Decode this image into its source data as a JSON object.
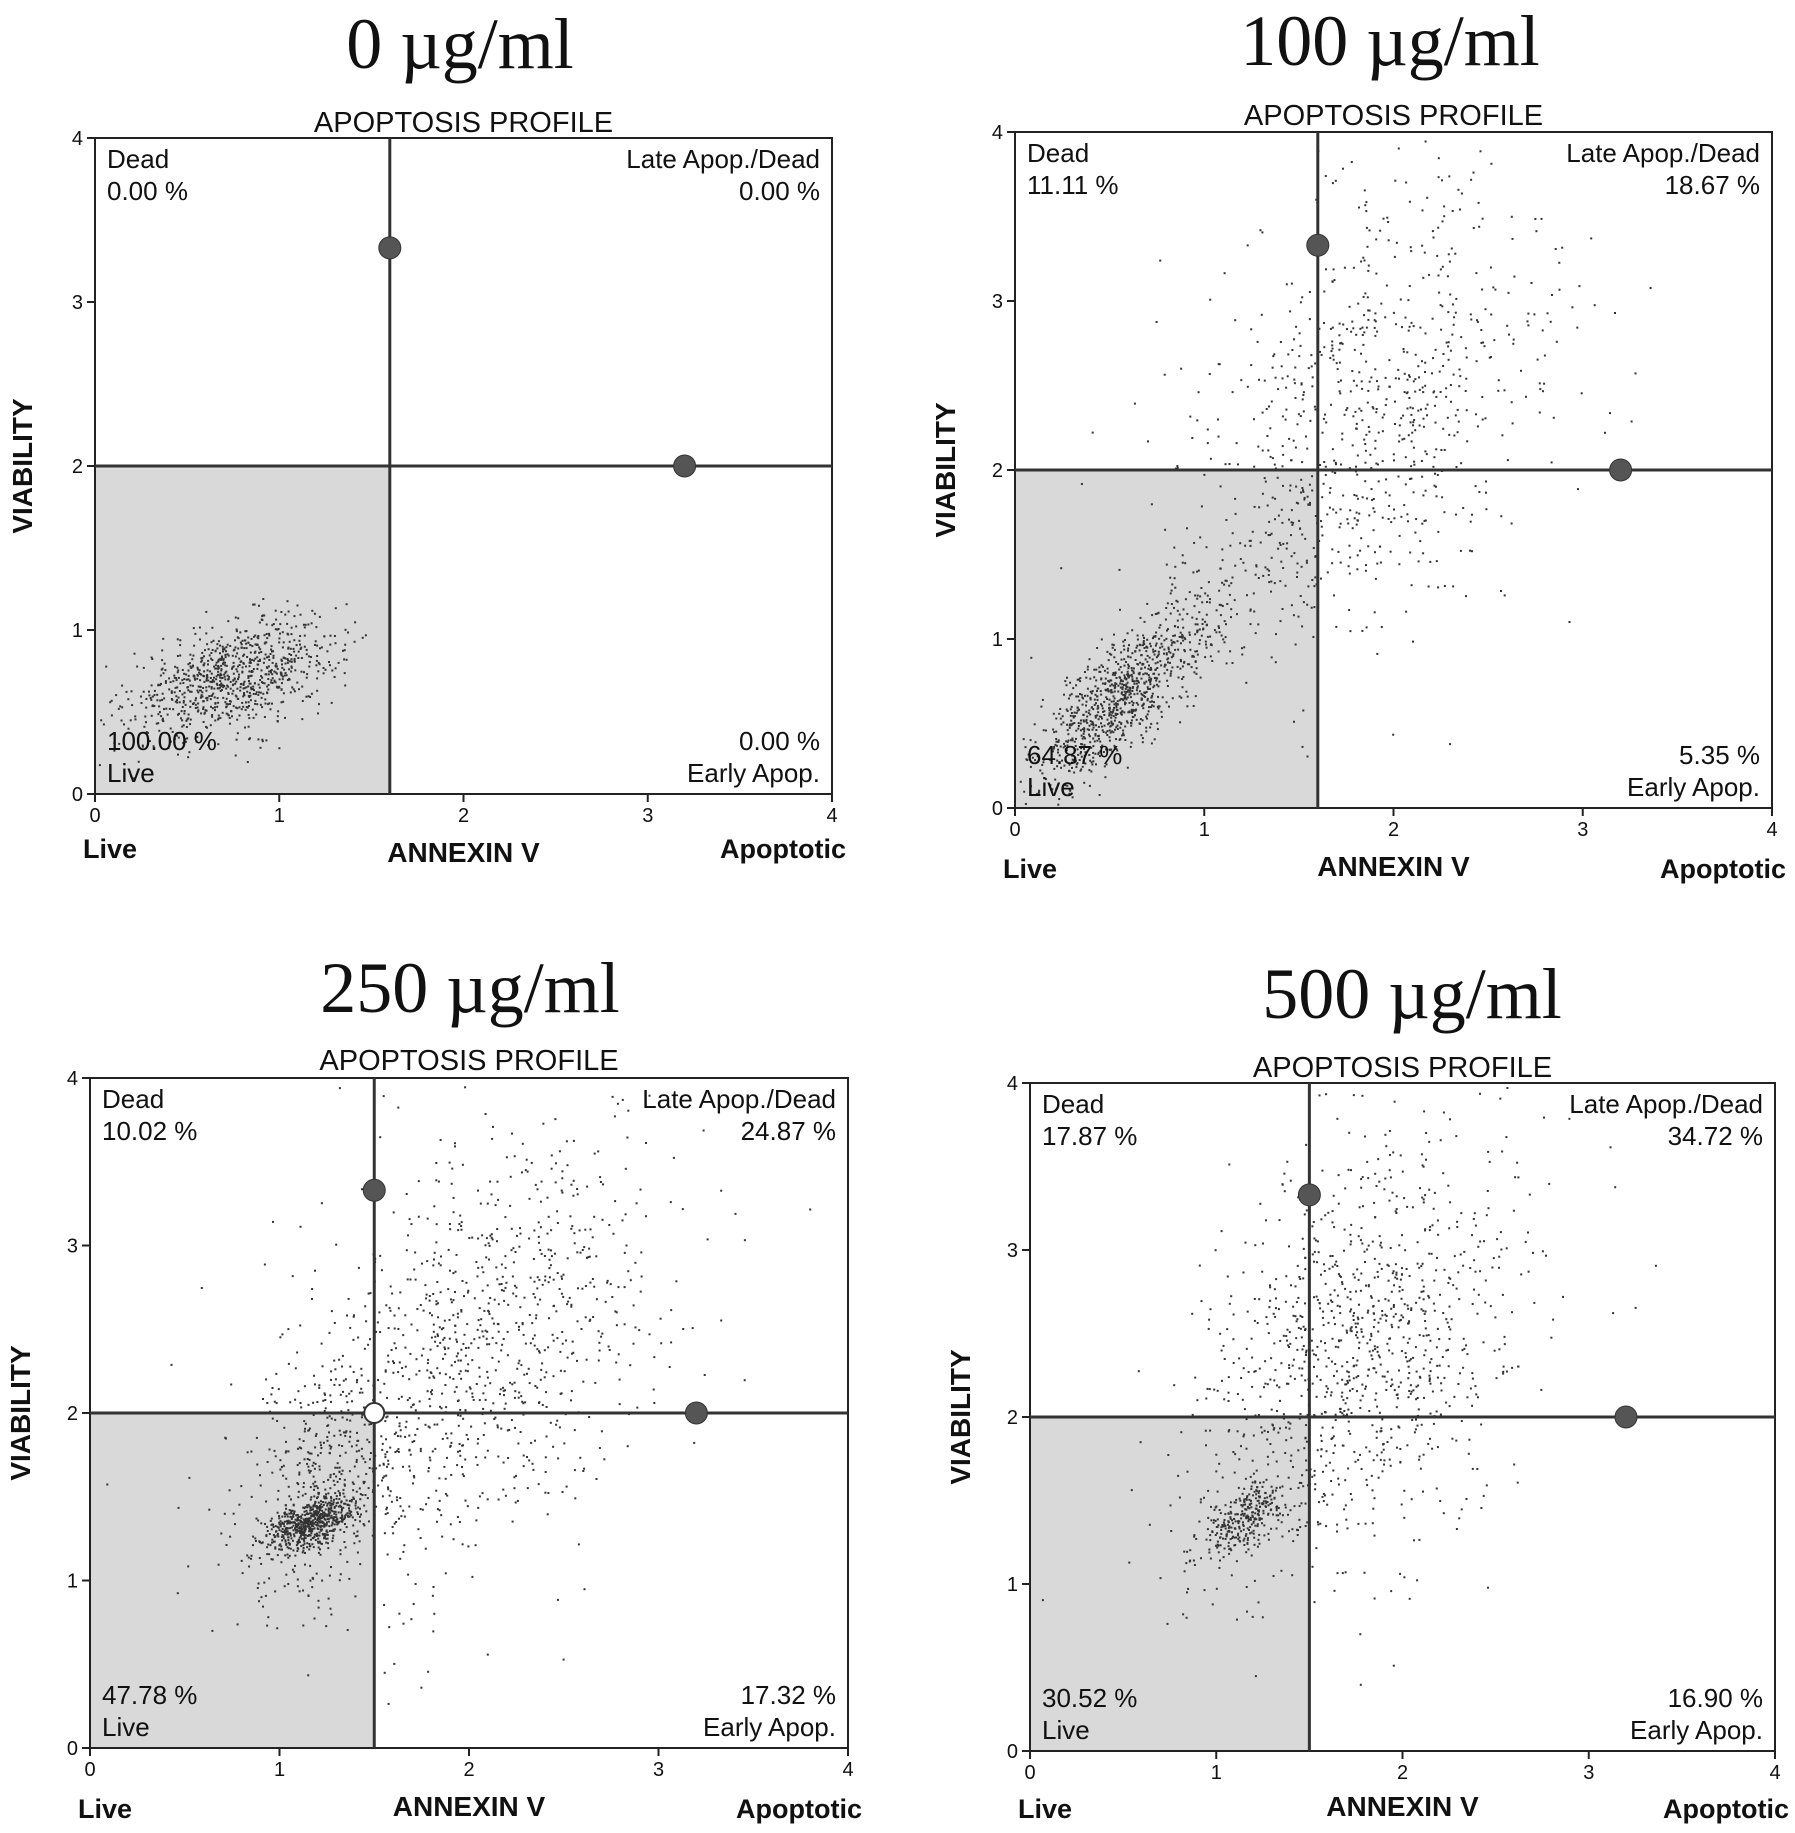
{
  "chart_data": [
    {
      "type": "scatter",
      "title": "0  µg/ml",
      "subtitle": "APOPTOSIS PROFILE",
      "xlabel": "ANNEXIN V",
      "ylabel": "VIABILITY",
      "x_low_label": "Live",
      "x_high_label": "Apoptotic",
      "xlim": [
        0,
        4
      ],
      "ylim": [
        0,
        4
      ],
      "xticks": [
        "0",
        "1",
        "2",
        "3",
        "4"
      ],
      "yticks": [
        "0",
        "1",
        "2",
        "3",
        "4"
      ],
      "gates": {
        "x": 1.6,
        "y": 2.0,
        "handle_top": [
          1.6,
          3.33
        ],
        "handle_right": [
          3.2,
          2.0
        ]
      },
      "quadrants": {
        "dead": {
          "label": "Dead",
          "value": "0.00 %"
        },
        "late": {
          "label": "Late Apop./Dead",
          "value": "0.00 %"
        },
        "live": {
          "label": "Live",
          "value": "100.00 %"
        },
        "early": {
          "label": "Early Apop.",
          "value": "0.00 %"
        }
      },
      "clusters": [
        {
          "cx": 0.75,
          "cy": 0.72,
          "sx": 0.28,
          "sy": 0.18,
          "n": 900,
          "rho": 0.45
        }
      ]
    },
    {
      "type": "scatter",
      "title": "100  µg/ml",
      "subtitle": "APOPTOSIS PROFILE",
      "xlabel": "ANNEXIN V",
      "ylabel": "VIABILITY",
      "x_low_label": "Live",
      "x_high_label": "Apoptotic",
      "xlim": [
        0,
        4
      ],
      "ylim": [
        0,
        4
      ],
      "xticks": [
        "0",
        "1",
        "2",
        "3",
        "4"
      ],
      "yticks": [
        "0",
        "1",
        "2",
        "3",
        "4"
      ],
      "gates": {
        "x": 1.6,
        "y": 2.0,
        "handle_top": [
          1.6,
          3.33
        ],
        "handle_right": [
          3.2,
          2.0
        ]
      },
      "quadrants": {
        "dead": {
          "label": "Dead",
          "value": "11.11 %"
        },
        "late": {
          "label": "Late Apop./Dead",
          "value": "18.67 %"
        },
        "live": {
          "label": "Live",
          "value": "64.87 %"
        },
        "early": {
          "label": "Early Apop.",
          "value": "5.35 %"
        }
      },
      "clusters": [
        {
          "cx": 0.55,
          "cy": 0.65,
          "sx": 0.22,
          "sy": 0.25,
          "n": 900,
          "rho": 0.75
        },
        {
          "cx": 1.9,
          "cy": 2.4,
          "sx": 0.5,
          "sy": 0.7,
          "n": 750,
          "rho": 0.35
        },
        {
          "cx": 1.3,
          "cy": 1.4,
          "sx": 0.35,
          "sy": 0.35,
          "n": 200,
          "rho": 0.6
        }
      ]
    },
    {
      "type": "scatter",
      "title": "250  µg/ml",
      "subtitle": "APOPTOSIS PROFILE",
      "xlabel": "ANNEXIN V",
      "ylabel": "VIABILITY",
      "x_low_label": "Live",
      "x_high_label": "Apoptotic",
      "xlim": [
        0,
        4
      ],
      "ylim": [
        0,
        4
      ],
      "xticks": [
        "0",
        "1",
        "2",
        "3",
        "4"
      ],
      "yticks": [
        "0",
        "1",
        "2",
        "3",
        "4"
      ],
      "gates": {
        "x": 1.5,
        "y": 2.0,
        "handle_top": [
          1.5,
          3.33
        ],
        "handle_right": [
          3.2,
          2.0
        ],
        "handle_center": [
          1.5,
          2.0
        ]
      },
      "quadrants": {
        "dead": {
          "label": "Dead",
          "value": "10.02 %"
        },
        "late": {
          "label": "Late Apop./Dead",
          "value": "24.87 %"
        },
        "live": {
          "label": "Live",
          "value": "47.78 %"
        },
        "early": {
          "label": "Early Apop.",
          "value": "17.32 %"
        }
      },
      "clusters": [
        {
          "cx": 1.15,
          "cy": 1.35,
          "sx": 0.12,
          "sy": 0.08,
          "n": 600,
          "rho": 0.5
        },
        {
          "cx": 1.95,
          "cy": 2.3,
          "sx": 0.55,
          "sy": 0.7,
          "n": 1100,
          "rho": 0.45
        },
        {
          "cx": 1.2,
          "cy": 1.5,
          "sx": 0.2,
          "sy": 0.35,
          "n": 300,
          "rho": 0.3
        }
      ]
    },
    {
      "type": "scatter",
      "title": "500  µg/ml",
      "subtitle": "APOPTOSIS PROFILE",
      "xlabel": "ANNEXIN V",
      "ylabel": "VIABILITY",
      "x_low_label": "Live",
      "x_high_label": "Apoptotic",
      "xlim": [
        0,
        4
      ],
      "ylim": [
        0,
        4
      ],
      "xticks": [
        "0",
        "1",
        "2",
        "3",
        "4"
      ],
      "yticks": [
        "0",
        "1",
        "2",
        "3",
        "4"
      ],
      "gates": {
        "x": 1.5,
        "y": 2.0,
        "handle_top": [
          1.5,
          3.33
        ],
        "handle_right": [
          3.2,
          2.0
        ]
      },
      "quadrants": {
        "dead": {
          "label": "Dead",
          "value": "17.87 %"
        },
        "late": {
          "label": "Late Apop./Dead",
          "value": "34.72 %"
        },
        "live": {
          "label": "Live",
          "value": "30.52 %"
        },
        "early": {
          "label": "Early Apop.",
          "value": "16.90 %"
        }
      },
      "clusters": [
        {
          "cx": 1.15,
          "cy": 1.4,
          "sx": 0.12,
          "sy": 0.12,
          "n": 300,
          "rho": 0.6
        },
        {
          "cx": 1.75,
          "cy": 2.35,
          "sx": 0.45,
          "sy": 0.65,
          "n": 1100,
          "rho": 0.35
        }
      ]
    }
  ]
}
